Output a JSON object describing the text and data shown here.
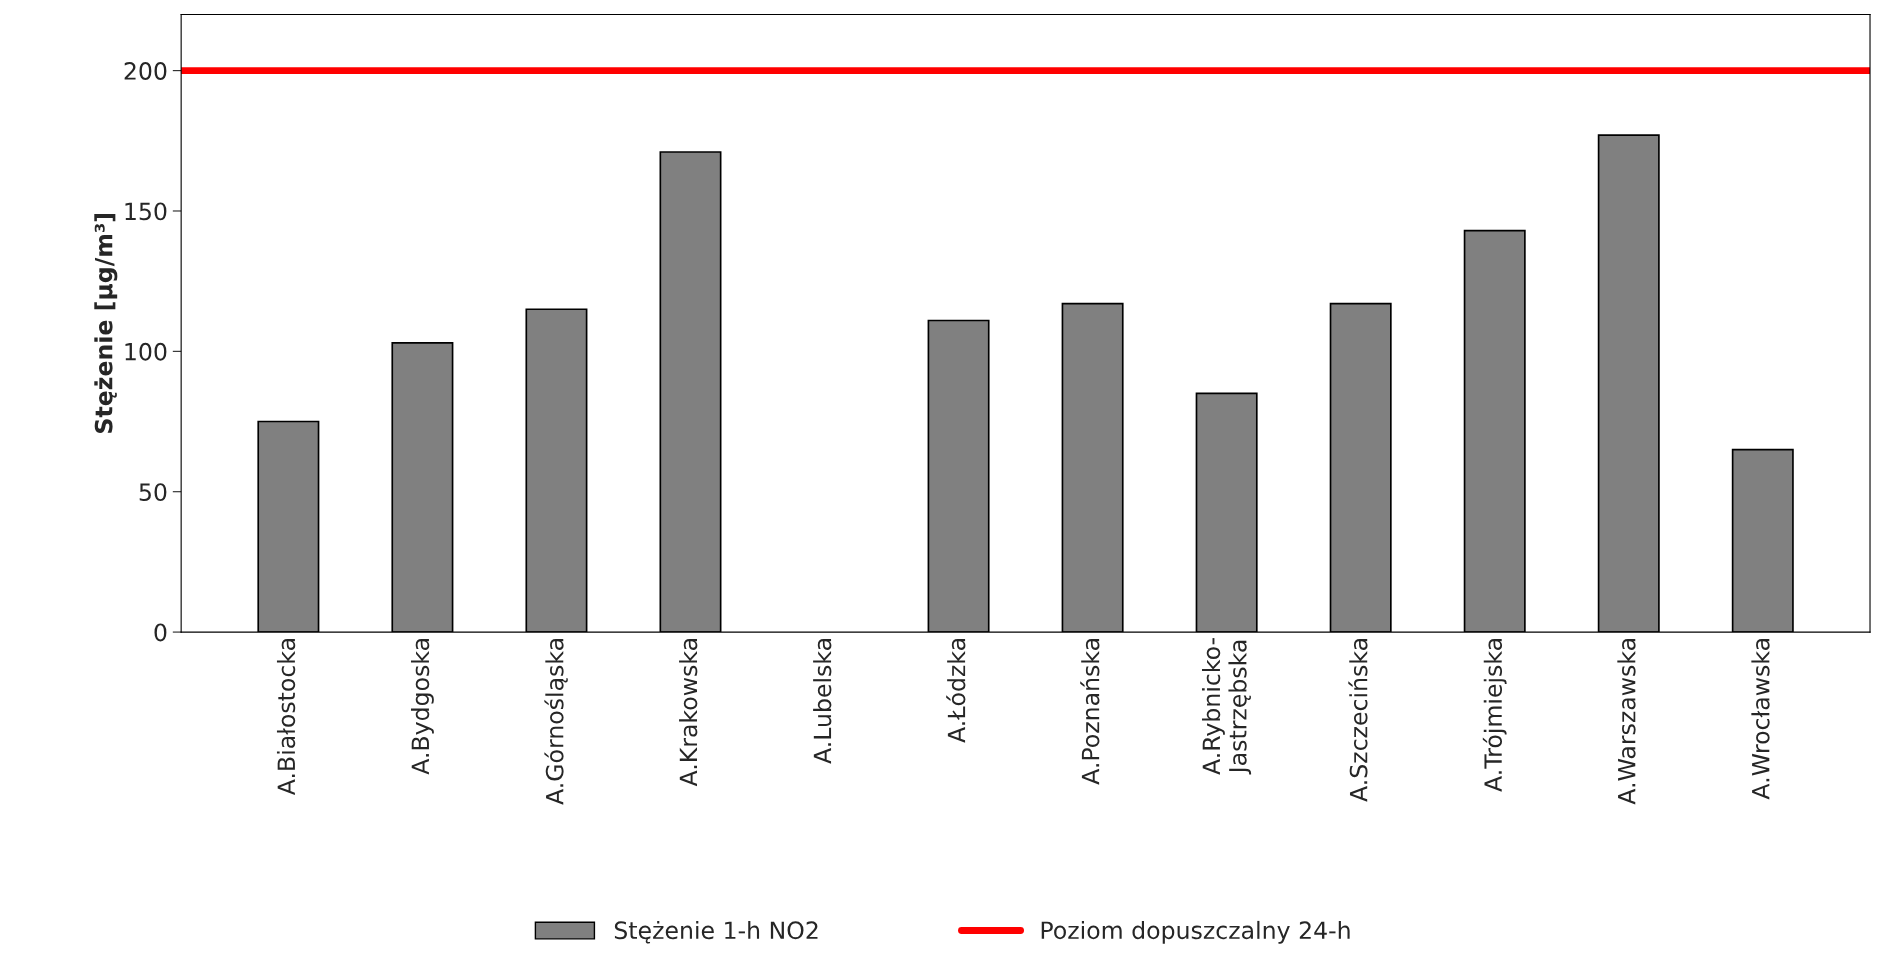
{
  "chart_data": {
    "type": "bar",
    "ylabel": "Stężenie [µg/m³]",
    "categories": [
      "A.Białostocka",
      "A.Bydgoska",
      "A.Górnośląska",
      "A.Krakowska",
      "A.Lubelska",
      "A.Łódzka",
      "A.Poznańska",
      "A.Rybnicko-\nJastrzębska",
      "A.Szczecińska",
      "A.Trójmiejska",
      "A.Warszawska",
      "A.Wrocławska"
    ],
    "series": [
      {
        "name": "Stężenie 1-h NO2",
        "color": "#808080",
        "values": [
          75,
          103,
          115,
          171,
          null,
          111,
          117,
          85,
          117,
          143,
          177,
          65
        ]
      }
    ],
    "ref_lines": [
      {
        "axis": "y",
        "value": 200,
        "label": "Poziom dopuszczalny 24-h",
        "color": "#ff0000",
        "line_style": "solid"
      }
    ],
    "ylim": [
      0,
      220
    ],
    "yticks": [
      0,
      50,
      100,
      150,
      200
    ],
    "grid": false,
    "legend": "bottom"
  }
}
